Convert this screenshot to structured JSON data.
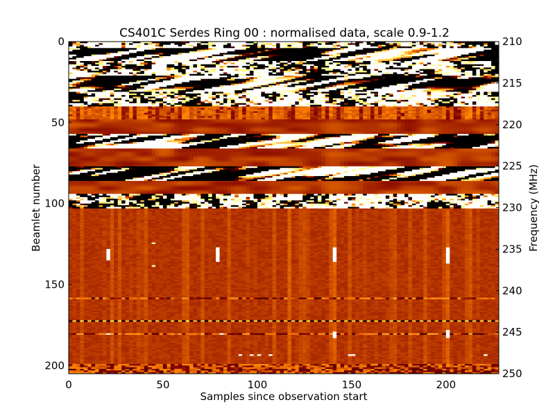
{
  "chart_data": {
    "type": "heatmap",
    "title": "CS401C Serdes Ring 00 : normalised data, scale 0.9-1.2",
    "xlabel": "Samples since observation start",
    "ylabel": "Beamlet number",
    "ylabel_right": "Frequency (MHz)",
    "xlim": [
      0,
      228
    ],
    "ylim": [
      205,
      0
    ],
    "ylim_right": [
      250,
      210
    ],
    "color_scale": [
      0.9,
      1.2
    ],
    "colormap": "afmhot",
    "x_ticks": [
      "0",
      "50",
      "100",
      "150",
      "200"
    ],
    "x_tick_values": [
      0,
      50,
      100,
      150,
      200
    ],
    "y_ticks": [
      "0",
      "50",
      "100",
      "150",
      "200"
    ],
    "y_tick_values": [
      0,
      50,
      100,
      150,
      200
    ],
    "y_right_ticks": [
      "210",
      "215",
      "220",
      "225",
      "230",
      "235",
      "240",
      "245",
      "250"
    ],
    "y_right_tick_values": [
      210,
      215,
      220,
      225,
      230,
      235,
      240,
      245,
      250
    ],
    "bands": [
      {
        "beamlets": [
          0,
          4
        ],
        "pattern": "noisy"
      },
      {
        "beamlets": [
          4,
          12
        ],
        "pattern": "blobs"
      },
      {
        "beamlets": [
          12,
          21
        ],
        "pattern": "noisy"
      },
      {
        "beamlets": [
          21,
          31
        ],
        "pattern": "blobs"
      },
      {
        "beamlets": [
          31,
          40
        ],
        "pattern": "noisy"
      },
      {
        "beamlets": [
          40,
          48
        ],
        "pattern": "streaky"
      },
      {
        "beamlets": [
          48,
          57
        ],
        "pattern": "smooth"
      },
      {
        "beamlets": [
          57,
          66
        ],
        "pattern": "blobs"
      },
      {
        "beamlets": [
          66,
          77
        ],
        "pattern": "smooth"
      },
      {
        "beamlets": [
          77,
          86
        ],
        "pattern": "blobs"
      },
      {
        "beamlets": [
          86,
          94
        ],
        "pattern": "smooth"
      },
      {
        "beamlets": [
          94,
          103
        ],
        "pattern": "noisy"
      },
      {
        "beamlets": [
          103,
          199
        ],
        "pattern": "base"
      },
      {
        "beamlets": [
          199,
          205
        ],
        "pattern": "noisy-mild"
      }
    ],
    "base_value": 1.005,
    "spikes": [
      {
        "sample": 20,
        "beamlets": [
          128,
          135
        ],
        "value": 1.2
      },
      {
        "sample": 79,
        "beamlets": [
          127,
          136
        ],
        "value": 1.2
      },
      {
        "sample": 140,
        "beamlets": [
          127,
          136
        ],
        "value": 1.2
      },
      {
        "sample": 200,
        "beamlets": [
          127,
          137
        ],
        "value": 1.2
      },
      {
        "sample": 20,
        "beamlets": [
          180,
          181
        ],
        "value": 1.2
      },
      {
        "sample": 80,
        "beamlets": [
          180,
          181
        ],
        "value": 1.2
      },
      {
        "sample": 140,
        "beamlets": [
          179,
          183
        ],
        "value": 1.2
      },
      {
        "sample": 200,
        "beamlets": [
          178,
          183
        ],
        "value": 1.2
      },
      {
        "sample": 45,
        "beamlets": [
          124,
          125
        ],
        "value": 1.15
      },
      {
        "sample": 45,
        "beamlets": [
          138,
          139
        ],
        "value": 1.15
      },
      {
        "sample": 91,
        "beamlets": [
          193,
          194
        ],
        "value": 1.2
      },
      {
        "sample": 96,
        "beamlets": [
          193,
          194
        ],
        "value": 1.2
      },
      {
        "sample": 100,
        "beamlets": [
          193,
          194
        ],
        "value": 1.2
      },
      {
        "sample": 106,
        "beamlets": [
          193,
          194
        ],
        "value": 1.2
      },
      {
        "sample": 148,
        "beamlets": [
          193,
          194
        ],
        "value": 1.2
      },
      {
        "sample": 151,
        "beamlets": [
          193,
          194
        ],
        "value": 1.2
      },
      {
        "sample": 220,
        "beamlets": [
          193,
          194
        ],
        "value": 1.2
      }
    ],
    "horizontal_lines": [
      {
        "beamlet": 158,
        "pattern": "dashed"
      },
      {
        "beamlet": 172,
        "pattern": "dotted"
      },
      {
        "beamlet": 180,
        "pattern": "dashed"
      }
    ],
    "vertical_lines": [
      {
        "sample": 116
      },
      {
        "sample": 140
      },
      {
        "sample": 200
      }
    ]
  }
}
